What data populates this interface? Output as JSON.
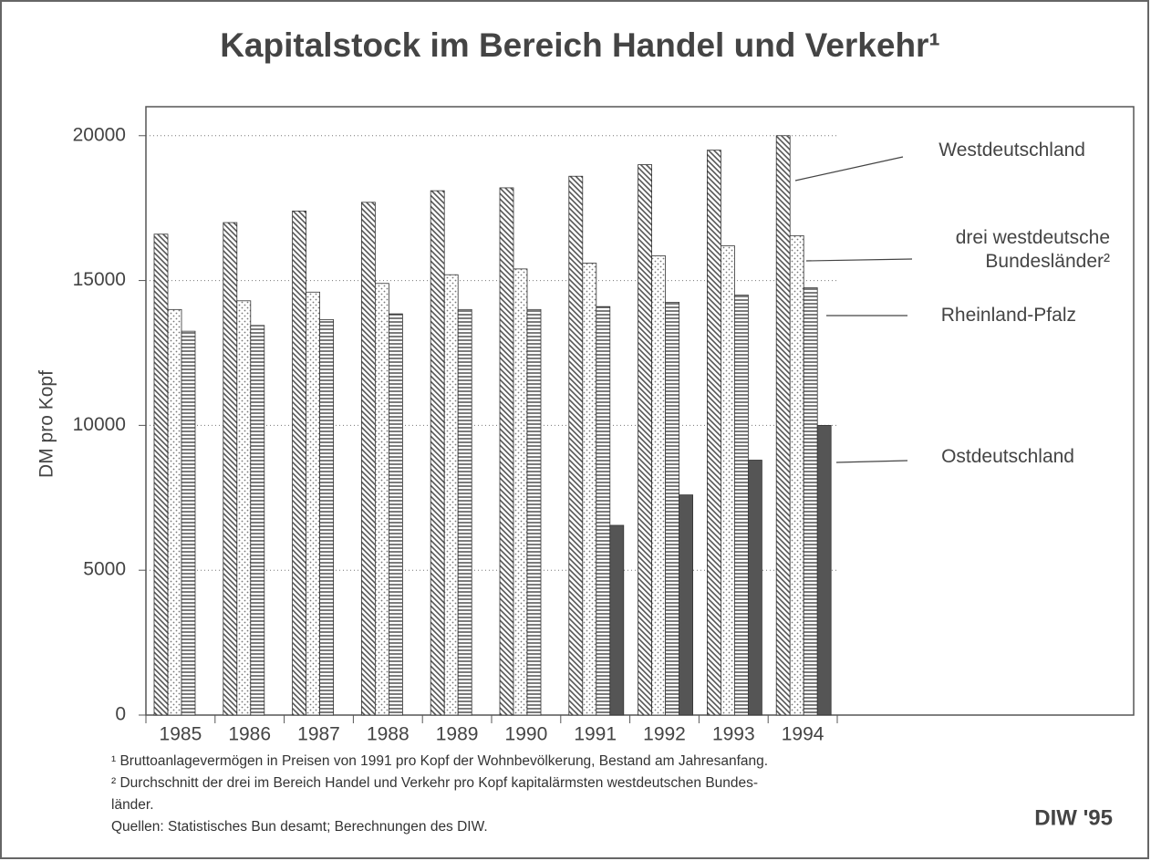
{
  "chart_data": {
    "type": "bar",
    "title": "Kapitalstock im Bereich Handel und Verkehr¹",
    "y_label": "DM pro Kopf",
    "categories": [
      "1985",
      "1986",
      "1987",
      "1988",
      "1989",
      "1990",
      "1991",
      "1992",
      "1993",
      "1994"
    ],
    "series": [
      {
        "name": "Westdeutschland",
        "color": "#555555",
        "pattern": "diagonal",
        "values": [
          16600,
          17000,
          17400,
          17700,
          18100,
          18200,
          18600,
          19000,
          19500,
          20000
        ]
      },
      {
        "name": "drei westdeutsche Bundesländer²",
        "color": "#777777",
        "pattern": "dots",
        "values": [
          14000,
          14300,
          14600,
          14900,
          15200,
          15400,
          15600,
          15850,
          16200,
          16550
        ]
      },
      {
        "name": "Rheinland-Pfalz",
        "color": "#444444",
        "pattern": "horizontal",
        "values": [
          13250,
          13450,
          13650,
          13850,
          14000,
          14000,
          14100,
          14250,
          14500,
          14750
        ]
      },
      {
        "name": "Ostdeutschland",
        "color": "#555555",
        "pattern": "solid",
        "values": [
          null,
          null,
          null,
          null,
          null,
          null,
          6550,
          7600,
          8800,
          10000
        ]
      }
    ],
    "ylim": [
      0,
      21000
    ],
    "yticks": [
      0,
      5000,
      10000,
      15000,
      20000
    ],
    "grid": true,
    "footnotes": [
      "¹ Bruttoanlagevermögen in Preisen von 1991 pro Kopf der Wohnbevölkerung, Bestand am Jahresanfang.",
      "² Durchschnitt der drei im Bereich Handel und Verkehr pro Kopf kapitalärmsten westdeutschen Bundes-",
      "länder.",
      "Quellen: Statistisches Bun  desamt; Berechnungen des DIW."
    ],
    "source_mark": "DIW '95"
  }
}
